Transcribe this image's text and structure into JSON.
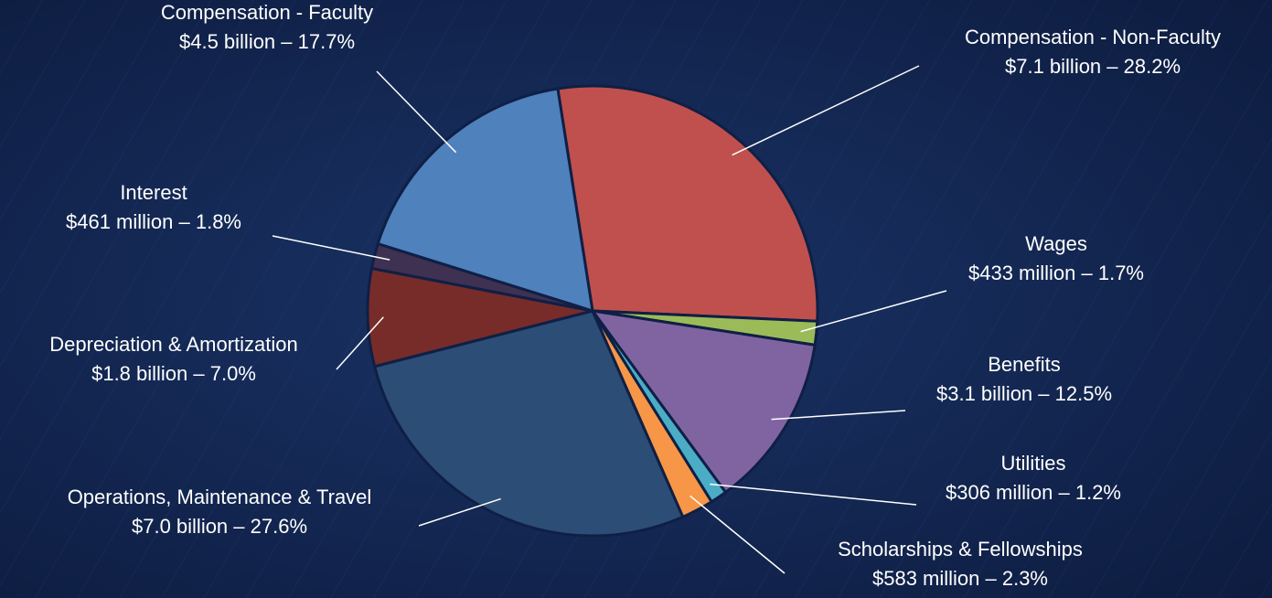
{
  "chart_data": {
    "type": "pie",
    "categories": [
      "Compensation - Non-Faculty",
      "Wages",
      "Benefits",
      "Utilities",
      "Scholarships & Fellowships",
      "Operations, Maintenance & Travel",
      "Depreciation & Amortization",
      "Interest",
      "Compensation - Faculty"
    ],
    "values": [
      28.2,
      1.7,
      12.5,
      1.2,
      2.3,
      27.6,
      7.0,
      1.8,
      17.7
    ],
    "value_labels": [
      "$7.1 billion – 28.2%",
      "$433 million – 1.7%",
      "$3.1 billion – 12.5%",
      "$306 million – 1.2%",
      "$583 million – 2.3%",
      "$7.0 billion – 27.6%",
      "$1.8 billion – 7.0%",
      "$461 million – 1.8%",
      "$4.5 billion – 17.7%"
    ],
    "colors": [
      "#c0504d",
      "#9bbb59",
      "#8064a2",
      "#4bacc6",
      "#f79646",
      "#2c4d75",
      "#772c2a",
      "#3f3151",
      "#4f81bd"
    ]
  }
}
